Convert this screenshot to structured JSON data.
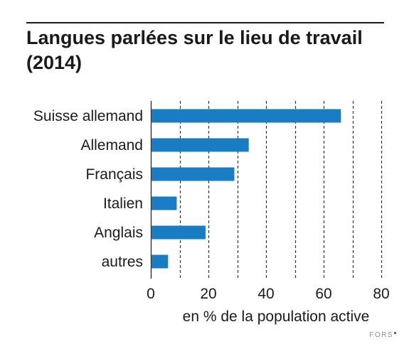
{
  "header": {
    "title_line1": "Langues parlées sur le lieu de travail",
    "title_line2": "(2014)"
  },
  "source": {
    "label": "FORS"
  },
  "colors": {
    "bar": "#1a7cc2",
    "text": "#1a1a1a",
    "grid": "#333333",
    "source": "#8a8a8a"
  },
  "chart_data": {
    "type": "bar",
    "orientation": "horizontal",
    "title": "Langues parlées sur le lieu de travail (2014)",
    "categories": [
      "Suisse allemand",
      "Allemand",
      "Français",
      "Italien",
      "Anglais",
      "autres"
    ],
    "values": [
      66,
      34,
      29,
      9,
      19,
      6
    ],
    "xlabel": "en % de la population active",
    "ylabel": "",
    "xlim": [
      0,
      80
    ],
    "xticks": [
      "0",
      "20",
      "40",
      "60",
      "80"
    ],
    "grid": "vertical dashed every 10",
    "legend": "none"
  }
}
